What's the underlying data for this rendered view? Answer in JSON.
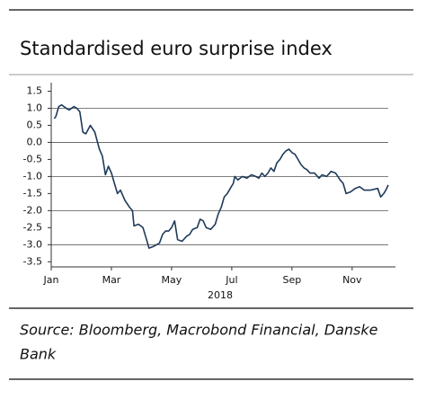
{
  "chart_data": {
    "type": "line",
    "title": "Standardised euro surprise index",
    "xlabel": "2018",
    "source": [
      "Source: Bloomberg, Macrobond Financial, Danske",
      "Bank"
    ],
    "x": [
      0.1,
      0.15,
      0.25,
      0.35,
      0.5,
      0.6,
      0.75,
      0.85,
      0.95,
      1.05,
      1.15,
      1.3,
      1.45,
      1.6,
      1.7,
      1.8,
      1.9,
      2.0,
      2.1,
      2.2,
      2.3,
      2.45,
      2.6,
      2.7,
      2.75,
      2.9,
      3.05,
      3.15,
      3.25,
      3.4,
      3.5,
      3.6,
      3.7,
      3.8,
      3.9,
      4.0,
      4.1,
      4.2,
      4.35,
      4.5,
      4.6,
      4.7,
      4.85,
      4.95,
      5.05,
      5.15,
      5.3,
      5.45,
      5.55,
      5.65,
      5.75,
      5.85,
      5.95,
      6.05,
      6.1,
      6.2,
      6.35,
      6.5,
      6.65,
      6.8,
      6.9,
      7.0,
      7.1,
      7.2,
      7.3,
      7.4,
      7.5,
      7.6,
      7.7,
      7.8,
      7.9,
      8.0,
      8.1,
      8.2,
      8.3,
      8.4,
      8.5,
      8.6,
      8.75,
      8.9,
      9.0,
      9.15,
      9.3,
      9.45,
      9.6,
      9.7,
      9.8,
      9.95,
      10.1,
      10.25,
      10.4,
      10.6,
      10.85,
      10.95,
      11.05,
      11.12,
      11.2
    ],
    "series": [
      {
        "color": "#1f3a5a",
        "values": [
          0.7,
          0.75,
          1.05,
          1.1,
          1.0,
          0.95,
          1.05,
          1.0,
          0.9,
          0.3,
          0.25,
          0.5,
          0.3,
          -0.2,
          -0.4,
          -0.95,
          -0.7,
          -0.9,
          -1.2,
          -1.5,
          -1.4,
          -1.7,
          -1.9,
          -2.0,
          -2.45,
          -2.4,
          -2.5,
          -2.8,
          -3.1,
          -3.05,
          -3.0,
          -2.95,
          -2.7,
          -2.6,
          -2.6,
          -2.5,
          -2.3,
          -2.85,
          -2.9,
          -2.75,
          -2.7,
          -2.55,
          -2.5,
          -2.25,
          -2.3,
          -2.5,
          -2.55,
          -2.4,
          -2.1,
          -1.9,
          -1.6,
          -1.5,
          -1.35,
          -1.2,
          -1.0,
          -1.1,
          -1.0,
          -1.05,
          -0.95,
          -1.0,
          -1.05,
          -0.9,
          -1.0,
          -0.9,
          -0.75,
          -0.85,
          -0.6,
          -0.5,
          -0.35,
          -0.25,
          -0.2,
          -0.3,
          -0.35,
          -0.5,
          -0.65,
          -0.75,
          -0.8,
          -0.9,
          -0.9,
          -1.05,
          -0.95,
          -1.0,
          -0.85,
          -0.9,
          -1.1,
          -1.2,
          -1.5,
          -1.45,
          -1.35,
          -1.3,
          -1.4,
          -1.4,
          -1.35,
          -1.6,
          -1.5,
          -1.4,
          -1.25
        ]
      }
    ],
    "xlim": [
      0,
      11.2
    ],
    "xticks": [
      {
        "value": 0,
        "label": "Jan"
      },
      {
        "value": 2,
        "label": "Mar"
      },
      {
        "value": 4,
        "label": "May"
      },
      {
        "value": 6,
        "label": "Jul"
      },
      {
        "value": 8,
        "label": "Sep"
      },
      {
        "value": 10,
        "label": "Nov"
      }
    ],
    "ylim": [
      -3.65,
      1.75
    ],
    "yticks": [
      1.5,
      {
        "value": 1,
        "label": "1.0"
      },
      0.5,
      {
        "value": 0,
        "label": "0.0"
      },
      -0.5,
      {
        "value": -1,
        "label": "-1.0"
      },
      -1.5,
      {
        "value": -2,
        "label": "-2.0"
      },
      -2.5,
      {
        "value": -3,
        "label": "-3.0"
      },
      -3.5
    ],
    "grid": true
  }
}
